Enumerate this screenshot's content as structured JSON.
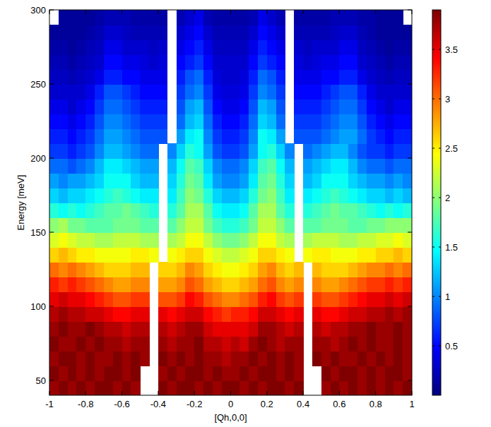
{
  "chart_data": {
    "type": "heatmap",
    "x_label": "[Qh,0,0]",
    "y_label": "Energy [meV]",
    "color": "jet",
    "xlim": [
      -1,
      1
    ],
    "ylim": [
      40,
      300
    ],
    "xticks": [
      -1,
      -0.8,
      -0.6,
      -0.4,
      -0.2,
      0,
      0.2,
      0.4,
      0.6,
      0.8,
      1
    ],
    "yticks": [
      50,
      100,
      150,
      200,
      250,
      300
    ],
    "colorbar": {
      "range": [
        0,
        3.9
      ],
      "ticks": [
        0.5,
        1,
        1.5,
        2,
        2.5,
        3,
        3.5
      ]
    },
    "x": [
      -0.975,
      -0.925,
      -0.875,
      -0.825,
      -0.775,
      -0.725,
      -0.675,
      -0.625,
      -0.575,
      -0.525,
      -0.475,
      -0.425,
      -0.375,
      -0.325,
      -0.275,
      -0.225,
      -0.175,
      -0.125,
      -0.075,
      -0.025,
      0.025,
      0.075,
      0.125,
      0.175,
      0.225,
      0.275,
      0.325,
      0.375,
      0.425,
      0.475,
      0.525,
      0.575,
      0.625,
      0.675,
      0.725,
      0.775,
      0.825,
      0.875,
      0.925,
      0.975
    ],
    "y": [
      45,
      55,
      65,
      75,
      85,
      95,
      105,
      115,
      125,
      135,
      145,
      155,
      165,
      175,
      185,
      195,
      205,
      215,
      225,
      235,
      245,
      255,
      265,
      275,
      285,
      295
    ],
    "values": [
      [
        3.8,
        3.9,
        3.8,
        3.9,
        3.8,
        3.9,
        3.9,
        3.8,
        3.9,
        3.8,
        null,
        null,
        3.9,
        3.8,
        3.9,
        3.9,
        3.8,
        3.9,
        3.8,
        3.9,
        3.9,
        3.8,
        3.9,
        3.8,
        3.9,
        3.9,
        3.8,
        3.9,
        null,
        null,
        3.8,
        3.9,
        3.8,
        3.9,
        3.8,
        3.9,
        3.8,
        3.9,
        3.8,
        3.9
      ],
      [
        3.9,
        3.8,
        3.9,
        3.8,
        3.9,
        3.8,
        3.9,
        3.9,
        3.8,
        3.9,
        null,
        null,
        3.8,
        3.9,
        3.8,
        3.9,
        3.9,
        3.8,
        3.9,
        3.8,
        3.8,
        3.9,
        3.8,
        3.9,
        3.9,
        3.8,
        3.9,
        3.8,
        null,
        null,
        3.9,
        3.8,
        3.9,
        3.9,
        3.8,
        3.9,
        3.8,
        3.9,
        3.9,
        3.8
      ],
      [
        3.8,
        3.9,
        3.9,
        3.8,
        3.9,
        3.8,
        3.8,
        3.9,
        3.8,
        3.9,
        3.8,
        null,
        3.9,
        3.8,
        3.9,
        3.8,
        3.9,
        3.8,
        3.8,
        3.7,
        3.8,
        3.8,
        3.9,
        3.8,
        3.9,
        3.8,
        3.9,
        3.8,
        null,
        3.9,
        3.8,
        3.9,
        3.8,
        3.8,
        3.9,
        3.8,
        3.9,
        3.8,
        3.9,
        3.8
      ],
      [
        3.9,
        3.8,
        3.8,
        3.9,
        3.8,
        3.9,
        3.8,
        3.8,
        3.7,
        3.8,
        3.8,
        null,
        3.8,
        3.7,
        3.8,
        3.8,
        3.9,
        3.7,
        3.7,
        3.6,
        3.7,
        3.6,
        3.8,
        3.9,
        3.8,
        3.7,
        3.8,
        3.8,
        null,
        3.8,
        3.8,
        3.7,
        3.8,
        3.9,
        3.8,
        3.9,
        3.8,
        3.8,
        3.9,
        3.8
      ],
      [
        3.8,
        3.9,
        3.8,
        3.8,
        3.9,
        3.8,
        3.7,
        3.7,
        3.6,
        3.7,
        3.7,
        null,
        3.7,
        3.6,
        3.7,
        3.8,
        3.8,
        3.6,
        3.5,
        3.5,
        3.5,
        3.5,
        3.6,
        3.8,
        3.8,
        3.7,
        3.6,
        3.7,
        null,
        3.7,
        3.6,
        3.7,
        3.7,
        3.8,
        3.8,
        3.9,
        3.8,
        3.8,
        3.9,
        3.8
      ],
      [
        3.7,
        3.8,
        3.7,
        3.7,
        3.6,
        3.6,
        3.5,
        3.4,
        3.4,
        3.5,
        3.5,
        null,
        3.5,
        3.4,
        3.5,
        3.6,
        3.6,
        3.4,
        3.3,
        3.2,
        3.3,
        3.3,
        3.4,
        3.6,
        3.6,
        3.5,
        3.4,
        3.5,
        null,
        3.5,
        3.4,
        3.4,
        3.5,
        3.6,
        3.6,
        3.7,
        3.7,
        3.8,
        3.7,
        3.8
      ],
      [
        3.5,
        3.6,
        3.5,
        3.5,
        3.4,
        3.3,
        3.2,
        3.1,
        3.1,
        3.2,
        3.2,
        null,
        3.1,
        3.1,
        3.2,
        3.4,
        3.3,
        3.1,
        3.0,
        2.9,
        2.9,
        3.0,
        3.1,
        3.3,
        3.4,
        3.2,
        3.1,
        3.2,
        null,
        3.2,
        3.1,
        3.1,
        3.2,
        3.3,
        3.4,
        3.5,
        3.5,
        3.6,
        3.5,
        3.6
      ],
      [
        3.3,
        3.2,
        3.3,
        3.2,
        3.1,
        3.0,
        2.9,
        2.8,
        2.8,
        2.9,
        2.9,
        null,
        2.8,
        2.8,
        2.9,
        3.1,
        3.0,
        2.8,
        2.7,
        2.6,
        2.6,
        2.7,
        2.8,
        3.0,
        3.1,
        2.9,
        2.8,
        2.9,
        null,
        2.9,
        2.8,
        2.8,
        2.9,
        3.0,
        3.1,
        3.2,
        3.2,
        3.3,
        3.2,
        3.3
      ],
      [
        3.0,
        2.9,
        3.0,
        2.9,
        2.8,
        2.7,
        2.6,
        2.6,
        2.6,
        2.7,
        2.7,
        null,
        2.6,
        2.6,
        2.7,
        2.9,
        2.8,
        2.6,
        2.5,
        2.4,
        2.4,
        2.5,
        2.6,
        2.8,
        2.9,
        2.7,
        2.6,
        2.7,
        null,
        2.7,
        2.6,
        2.6,
        2.6,
        2.7,
        2.8,
        2.9,
        2.9,
        3.0,
        2.9,
        3.0
      ],
      [
        2.6,
        2.7,
        2.6,
        2.5,
        2.5,
        2.4,
        2.4,
        2.4,
        2.4,
        2.5,
        2.5,
        2.4,
        null,
        2.4,
        2.5,
        2.6,
        2.6,
        2.4,
        2.3,
        2.2,
        2.2,
        2.3,
        2.4,
        2.6,
        2.6,
        2.5,
        2.4,
        null,
        2.4,
        2.5,
        2.5,
        2.4,
        2.4,
        2.4,
        2.5,
        2.5,
        2.6,
        2.6,
        2.7,
        2.6
      ],
      [
        2.3,
        2.4,
        2.3,
        2.2,
        2.2,
        2.1,
        2.1,
        2.2,
        2.2,
        2.2,
        2.1,
        2.1,
        null,
        2.1,
        2.2,
        2.4,
        2.4,
        2.2,
        2.0,
        1.9,
        1.9,
        2.0,
        2.2,
        2.4,
        2.4,
        2.2,
        2.1,
        null,
        2.1,
        2.2,
        2.2,
        2.2,
        2.1,
        2.1,
        2.2,
        2.2,
        2.3,
        2.3,
        2.4,
        2.3
      ],
      [
        2.0,
        2.1,
        1.9,
        1.9,
        1.8,
        1.8,
        1.8,
        1.9,
        1.9,
        1.9,
        1.8,
        1.8,
        null,
        1.8,
        2.0,
        2.2,
        2.2,
        1.9,
        1.7,
        1.6,
        1.6,
        1.7,
        1.9,
        2.2,
        2.2,
        2.0,
        1.8,
        null,
        1.8,
        1.8,
        1.9,
        1.9,
        1.9,
        1.8,
        1.8,
        1.9,
        1.9,
        2.0,
        2.0,
        2.0
      ],
      [
        1.6,
        1.5,
        1.6,
        1.5,
        1.6,
        1.7,
        1.8,
        1.8,
        1.9,
        1.8,
        1.7,
        1.6,
        null,
        1.6,
        1.8,
        2.1,
        2.1,
        1.8,
        1.5,
        1.4,
        1.4,
        1.5,
        1.8,
        2.1,
        2.1,
        1.8,
        1.6,
        null,
        1.6,
        1.7,
        1.8,
        1.9,
        1.8,
        1.8,
        1.7,
        1.6,
        1.5,
        1.6,
        1.5,
        1.6
      ],
      [
        1.3,
        1.2,
        1.3,
        1.3,
        1.4,
        1.5,
        1.6,
        1.7,
        1.6,
        1.5,
        1.4,
        1.4,
        null,
        1.4,
        1.7,
        2.0,
        1.9,
        1.6,
        1.3,
        1.2,
        1.2,
        1.3,
        1.6,
        1.9,
        2.0,
        1.7,
        1.4,
        null,
        1.4,
        1.5,
        1.6,
        1.7,
        1.6,
        1.5,
        1.4,
        1.3,
        1.3,
        1.2,
        1.3,
        1.2
      ],
      [
        1.1,
        1.0,
        1.1,
        1.1,
        1.2,
        1.3,
        1.5,
        1.5,
        1.5,
        1.3,
        1.2,
        1.2,
        null,
        1.3,
        1.6,
        1.9,
        1.8,
        1.4,
        1.1,
        1.0,
        1.0,
        1.1,
        1.4,
        1.8,
        1.9,
        1.6,
        1.3,
        null,
        1.2,
        1.3,
        1.5,
        1.5,
        1.5,
        1.3,
        1.2,
        1.1,
        1.1,
        1.0,
        1.1,
        1.0
      ],
      [
        0.9,
        0.9,
        0.8,
        0.9,
        1.0,
        1.2,
        1.4,
        1.4,
        1.3,
        1.2,
        1.1,
        1.1,
        null,
        1.2,
        1.5,
        1.8,
        1.7,
        1.3,
        1.0,
        0.9,
        0.9,
        1.0,
        1.3,
        1.7,
        1.8,
        1.5,
        1.2,
        null,
        1.1,
        1.2,
        1.3,
        1.4,
        1.4,
        1.2,
        1.0,
        0.9,
        0.9,
        0.8,
        0.9,
        0.9
      ],
      [
        0.7,
        0.7,
        0.6,
        0.7,
        0.8,
        1.0,
        1.2,
        1.2,
        1.1,
        1.0,
        0.9,
        0.9,
        null,
        1.0,
        1.3,
        1.6,
        1.5,
        1.1,
        0.8,
        0.7,
        0.7,
        0.8,
        1.1,
        1.5,
        1.6,
        1.3,
        1.0,
        null,
        0.9,
        1.0,
        1.1,
        1.2,
        1.2,
        1.0,
        0.8,
        0.7,
        0.7,
        0.6,
        0.7,
        0.7
      ],
      [
        0.6,
        0.6,
        0.5,
        0.6,
        0.7,
        0.9,
        1.1,
        1.1,
        1.0,
        0.9,
        0.8,
        0.8,
        0.8,
        null,
        1.1,
        1.4,
        1.5,
        1.0,
        0.7,
        0.6,
        0.6,
        0.7,
        1.0,
        1.5,
        1.4,
        1.1,
        null,
        0.8,
        0.8,
        0.8,
        0.9,
        1.0,
        1.1,
        1.1,
        0.9,
        0.7,
        0.6,
        0.5,
        0.6,
        0.6
      ],
      [
        0.5,
        0.5,
        0.4,
        0.5,
        0.6,
        0.8,
        1.0,
        1.0,
        0.9,
        0.8,
        0.7,
        0.7,
        0.7,
        null,
        0.9,
        1.2,
        1.3,
        0.9,
        0.6,
        0.5,
        0.5,
        0.6,
        0.9,
        1.3,
        1.2,
        0.9,
        null,
        0.7,
        0.7,
        0.7,
        0.8,
        0.9,
        1.0,
        1.0,
        0.8,
        0.6,
        0.5,
        0.4,
        0.5,
        0.5
      ],
      [
        0.4,
        0.4,
        0.3,
        0.4,
        0.5,
        0.7,
        0.9,
        0.9,
        0.8,
        0.7,
        0.6,
        0.6,
        0.6,
        null,
        0.8,
        1.1,
        1.2,
        0.8,
        0.5,
        0.4,
        0.4,
        0.5,
        0.8,
        1.2,
        1.1,
        0.8,
        null,
        0.6,
        0.6,
        0.6,
        0.7,
        0.8,
        0.9,
        0.9,
        0.7,
        0.5,
        0.4,
        0.3,
        0.4,
        0.4
      ],
      [
        0.3,
        0.3,
        0.3,
        0.3,
        0.4,
        0.6,
        0.8,
        0.8,
        0.7,
        0.6,
        0.5,
        0.5,
        0.5,
        null,
        0.7,
        0.9,
        1.0,
        0.7,
        0.4,
        0.35,
        0.35,
        0.4,
        0.7,
        1.0,
        0.9,
        0.7,
        null,
        0.5,
        0.5,
        0.5,
        0.6,
        0.7,
        0.8,
        0.8,
        0.6,
        0.4,
        0.3,
        0.3,
        0.3,
        0.3
      ],
      [
        0.25,
        0.25,
        0.2,
        0.25,
        0.3,
        0.4,
        0.6,
        0.6,
        0.5,
        0.5,
        0.4,
        0.4,
        0.4,
        null,
        0.6,
        0.8,
        0.9,
        0.6,
        0.35,
        0.3,
        0.3,
        0.35,
        0.6,
        0.9,
        0.8,
        0.6,
        null,
        0.4,
        0.4,
        0.4,
        0.5,
        0.5,
        0.6,
        0.6,
        0.4,
        0.3,
        0.25,
        0.2,
        0.25,
        0.25
      ],
      [
        0.2,
        0.2,
        0.15,
        0.2,
        0.25,
        0.3,
        0.5,
        0.5,
        0.4,
        0.4,
        0.35,
        0.3,
        0.35,
        null,
        0.5,
        0.6,
        0.7,
        0.5,
        0.3,
        0.3,
        0.3,
        0.3,
        0.5,
        0.7,
        0.6,
        0.5,
        null,
        0.35,
        0.3,
        0.35,
        0.4,
        0.4,
        0.5,
        0.5,
        0.3,
        0.25,
        0.2,
        0.15,
        0.2,
        0.2
      ],
      [
        0.15,
        0.15,
        0.1,
        0.15,
        0.2,
        0.25,
        0.4,
        0.4,
        0.3,
        0.3,
        0.3,
        0.25,
        0.3,
        null,
        0.4,
        0.5,
        0.6,
        0.4,
        0.25,
        0.25,
        0.25,
        0.25,
        0.4,
        0.6,
        0.5,
        0.4,
        null,
        0.3,
        0.25,
        0.3,
        0.3,
        0.3,
        0.4,
        0.4,
        0.25,
        0.2,
        0.15,
        0.1,
        0.15,
        0.15
      ],
      [
        0.1,
        0.1,
        0.1,
        0.1,
        0.15,
        0.2,
        0.3,
        0.3,
        0.25,
        0.2,
        0.2,
        0.2,
        0.2,
        null,
        0.3,
        0.4,
        0.5,
        0.3,
        0.2,
        0.2,
        0.2,
        0.2,
        0.3,
        0.5,
        0.4,
        0.3,
        null,
        0.2,
        0.2,
        0.2,
        0.2,
        0.25,
        0.3,
        0.3,
        0.2,
        0.15,
        0.1,
        0.1,
        0.1,
        0.1
      ],
      [
        null,
        0.1,
        0.1,
        0.1,
        0.1,
        0.15,
        0.2,
        0.2,
        0.2,
        0.15,
        0.15,
        0.15,
        0.15,
        null,
        0.2,
        0.3,
        0.4,
        0.2,
        0.15,
        0.15,
        0.15,
        0.15,
        0.2,
        0.4,
        0.3,
        0.2,
        null,
        0.15,
        0.15,
        0.15,
        0.15,
        0.2,
        0.2,
        0.2,
        0.15,
        0.15,
        0.1,
        0.1,
        0.1,
        null
      ]
    ]
  }
}
